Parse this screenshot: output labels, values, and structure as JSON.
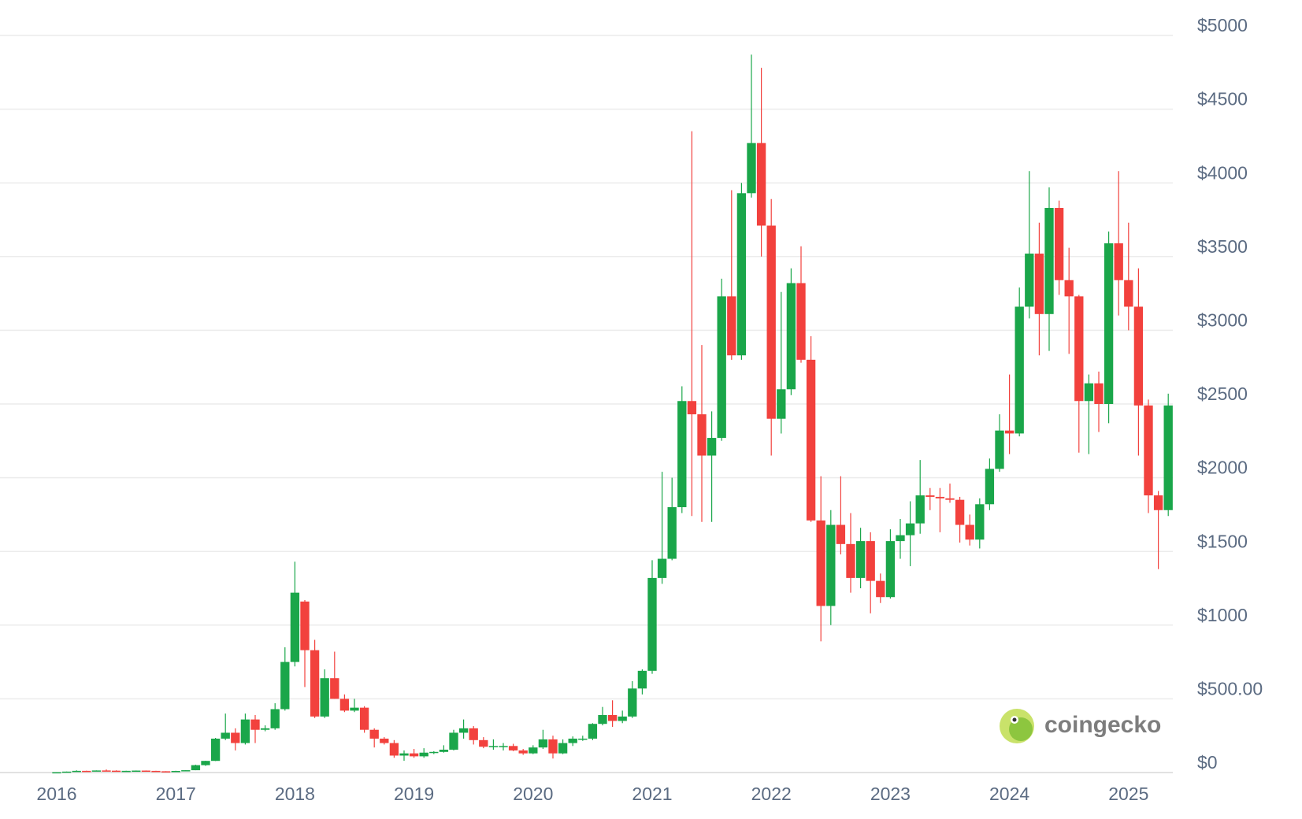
{
  "chart_data": {
    "type": "candlestick",
    "watermark": "coingecko",
    "up_color": "#1aa64a",
    "down_color": "#f2413d",
    "grid": true,
    "ylim": [
      0,
      5000
    ],
    "yticks": [
      {
        "value": 0,
        "label": "$0"
      },
      {
        "value": 500,
        "label": "$500.00"
      },
      {
        "value": 1000,
        "label": "$1000"
      },
      {
        "value": 1500,
        "label": "$1500"
      },
      {
        "value": 2000,
        "label": "$2000"
      },
      {
        "value": 2500,
        "label": "$2500"
      },
      {
        "value": 3000,
        "label": "$3000"
      },
      {
        "value": 3500,
        "label": "$3500"
      },
      {
        "value": 4000,
        "label": "$4000"
      },
      {
        "value": 4500,
        "label": "$4500"
      },
      {
        "value": 5000,
        "label": "$5000"
      }
    ],
    "categories": [
      "2016",
      null,
      null,
      null,
      null,
      null,
      null,
      null,
      null,
      null,
      null,
      null,
      "2017",
      null,
      null,
      null,
      null,
      null,
      null,
      null,
      null,
      null,
      null,
      null,
      "2018",
      null,
      null,
      null,
      null,
      null,
      null,
      null,
      null,
      null,
      null,
      null,
      "2019",
      null,
      null,
      null,
      null,
      null,
      null,
      null,
      null,
      null,
      null,
      null,
      "2020",
      null,
      null,
      null,
      null,
      null,
      null,
      null,
      null,
      null,
      null,
      null,
      "2021",
      null,
      null,
      null,
      null,
      null,
      null,
      null,
      null,
      null,
      null,
      null,
      "2022",
      null,
      null,
      null,
      null,
      null,
      null,
      null,
      null,
      null,
      null,
      null,
      "2023",
      null,
      null,
      null,
      null,
      null,
      null,
      null,
      null,
      null,
      null,
      null,
      "2024",
      null,
      null,
      null,
      null,
      null,
      null,
      null,
      null,
      null,
      null,
      null,
      "2025",
      null,
      null,
      null,
      null
    ],
    "ohlc": [
      [
        0.95,
        2.3,
        0.9,
        2.2
      ],
      [
        2.2,
        6.6,
        2.1,
        6.3
      ],
      [
        6.3,
        15,
        6.2,
        11.4
      ],
      [
        11.4,
        12.5,
        6.9,
        8.8
      ],
      [
        8.8,
        14.5,
        8.6,
        14
      ],
      [
        14,
        21,
        11,
        12.5
      ],
      [
        12.5,
        15,
        10,
        11.4
      ],
      [
        11.4,
        12,
        10,
        11.5
      ],
      [
        11.5,
        14,
        11,
        13.2
      ],
      [
        13.2,
        14,
        10.6,
        11.2
      ],
      [
        11.2,
        11.8,
        8.5,
        8.6
      ],
      [
        8.6,
        9,
        6.9,
        8
      ],
      [
        8,
        12,
        8,
        10.7
      ],
      [
        10.7,
        16,
        10.5,
        15.7
      ],
      [
        15.7,
        53,
        15.6,
        50
      ],
      [
        50,
        80,
        45,
        79
      ],
      [
        79,
        235,
        78,
        230
      ],
      [
        230,
        400,
        220,
        270
      ],
      [
        270,
        300,
        150,
        200
      ],
      [
        200,
        400,
        190,
        360
      ],
      [
        360,
        390,
        200,
        290
      ],
      [
        290,
        320,
        280,
        300
      ],
      [
        300,
        470,
        290,
        430
      ],
      [
        430,
        850,
        420,
        750
      ],
      [
        750,
        1430,
        720,
        1220
      ],
      [
        1160,
        1170,
        580,
        830
      ],
      [
        830,
        900,
        370,
        380
      ],
      [
        380,
        700,
        370,
        640
      ],
      [
        640,
        820,
        500,
        500
      ],
      [
        500,
        530,
        410,
        420
      ],
      [
        420,
        500,
        410,
        440
      ],
      [
        440,
        450,
        270,
        290
      ],
      [
        290,
        300,
        170,
        230
      ],
      [
        230,
        240,
        190,
        200
      ],
      [
        200,
        220,
        100,
        115
      ],
      [
        115,
        150,
        80,
        130
      ],
      [
        130,
        160,
        100,
        110
      ],
      [
        110,
        165,
        100,
        135
      ],
      [
        135,
        145,
        125,
        140
      ],
      [
        140,
        185,
        135,
        155
      ],
      [
        155,
        290,
        150,
        270
      ],
      [
        270,
        360,
        230,
        300
      ],
      [
        300,
        315,
        190,
        220
      ],
      [
        220,
        240,
        165,
        175
      ],
      [
        175,
        225,
        155,
        180
      ],
      [
        180,
        200,
        150,
        180
      ],
      [
        180,
        195,
        145,
        150
      ],
      [
        150,
        160,
        120,
        130
      ],
      [
        130,
        185,
        125,
        170
      ],
      [
        170,
        290,
        160,
        225
      ],
      [
        225,
        250,
        95,
        130
      ],
      [
        130,
        225,
        125,
        200
      ],
      [
        200,
        245,
        180,
        230
      ],
      [
        230,
        250,
        215,
        230
      ],
      [
        230,
        335,
        220,
        330
      ],
      [
        330,
        445,
        320,
        390
      ],
      [
        390,
        490,
        310,
        350
      ],
      [
        350,
        420,
        335,
        380
      ],
      [
        380,
        620,
        370,
        570
      ],
      [
        570,
        700,
        530,
        690
      ],
      [
        690,
        1440,
        670,
        1320
      ],
      [
        1320,
        2040,
        1280,
        1450
      ],
      [
        1450,
        2000,
        1440,
        1800
      ],
      [
        1800,
        2620,
        1760,
        2520
      ],
      [
        2520,
        4350,
        1740,
        2430
      ],
      [
        2430,
        2900,
        1700,
        2150
      ],
      [
        2150,
        2450,
        1700,
        2270
      ],
      [
        2270,
        3350,
        2250,
        3230
      ],
      [
        3230,
        3950,
        2800,
        2830
      ],
      [
        2830,
        4000,
        2800,
        3930
      ],
      [
        3930,
        4870,
        3900,
        4270
      ],
      [
        4270,
        4780,
        3500,
        3710
      ],
      [
        3710,
        3890,
        2150,
        2400
      ],
      [
        2400,
        3260,
        2300,
        2600
      ],
      [
        2600,
        3420,
        2560,
        3320
      ],
      [
        3320,
        3570,
        2780,
        2800
      ],
      [
        2800,
        2960,
        1700,
        1710
      ],
      [
        1710,
        2010,
        890,
        1130
      ],
      [
        1130,
        1780,
        1000,
        1680
      ],
      [
        1680,
        2010,
        1480,
        1550
      ],
      [
        1550,
        1760,
        1220,
        1320
      ],
      [
        1320,
        1660,
        1250,
        1570
      ],
      [
        1570,
        1630,
        1080,
        1300
      ],
      [
        1300,
        1350,
        1150,
        1190
      ],
      [
        1190,
        1650,
        1180,
        1570
      ],
      [
        1570,
        1720,
        1450,
        1610
      ],
      [
        1610,
        1840,
        1400,
        1690
      ],
      [
        1690,
        2120,
        1620,
        1880
      ],
      [
        1880,
        1930,
        1780,
        1870
      ],
      [
        1870,
        1930,
        1630,
        1860
      ],
      [
        1860,
        1960,
        1830,
        1850
      ],
      [
        1850,
        1870,
        1560,
        1680
      ],
      [
        1680,
        1750,
        1540,
        1580
      ],
      [
        1580,
        1860,
        1520,
        1820
      ],
      [
        1820,
        2130,
        1780,
        2060
      ],
      [
        2060,
        2430,
        2040,
        2320
      ],
      [
        2320,
        2700,
        2160,
        2300
      ],
      [
        2300,
        3290,
        2280,
        3160
      ],
      [
        3160,
        4080,
        3080,
        3520
      ],
      [
        3520,
        3730,
        2830,
        3110
      ],
      [
        3110,
        3970,
        2860,
        3830
      ],
      [
        3830,
        3880,
        3240,
        3340
      ],
      [
        3340,
        3560,
        2840,
        3230
      ],
      [
        3230,
        3240,
        2170,
        2520
      ],
      [
        2520,
        2700,
        2160,
        2640
      ],
      [
        2640,
        2720,
        2310,
        2500
      ],
      [
        2500,
        3670,
        2370,
        3590
      ],
      [
        3590,
        4080,
        3100,
        3340
      ],
      [
        3340,
        3730,
        3000,
        3160
      ],
      [
        3160,
        3420,
        2150,
        2490
      ],
      [
        2490,
        2530,
        1760,
        1880
      ],
      [
        1880,
        1910,
        1380,
        1780
      ],
      [
        1780,
        2570,
        1740,
        2490
      ]
    ]
  }
}
